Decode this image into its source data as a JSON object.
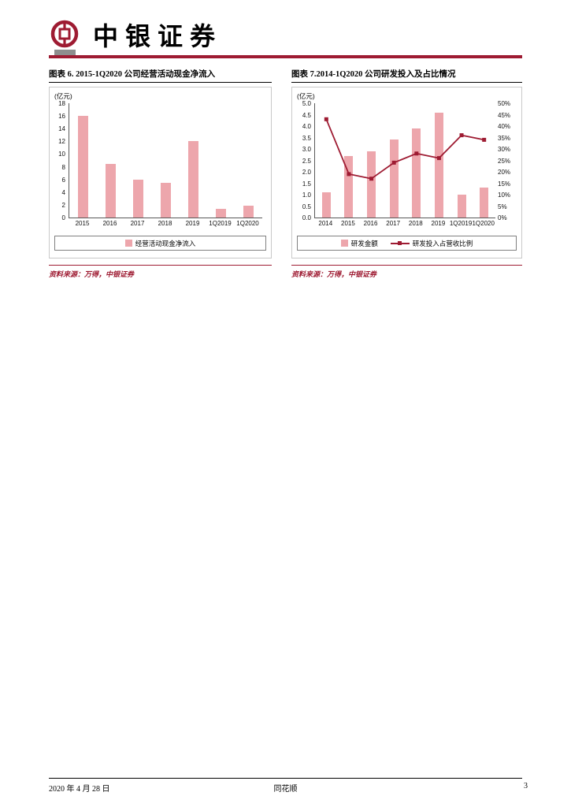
{
  "header": {
    "brand": "中银证券"
  },
  "colors": {
    "brand_red": "#9E1B32",
    "bar_fill": "#EDA6AC",
    "line_red": "#9E1B32"
  },
  "figures": [
    {
      "title": "图表 6. 2015-1Q2020 公司经营活动现金净流入",
      "unit": "(亿元)",
      "legend": [
        {
          "type": "bar",
          "label": "经营活动现金净流入"
        }
      ],
      "source": "资料来源：万得，中银证券"
    },
    {
      "title": "图表 7.2014-1Q2020 公司研发投入及占比情况",
      "unit": "(亿元)",
      "legend": [
        {
          "type": "bar",
          "label": "研发金额"
        },
        {
          "type": "line",
          "label": "研发投入占营收比例"
        }
      ],
      "source": "资料来源：万得，中银证券"
    }
  ],
  "chart_data": [
    {
      "type": "bar",
      "title": "2015-1Q2020 公司经营活动现金净流入",
      "unit": "亿元",
      "categories": [
        "2015",
        "2016",
        "2017",
        "2018",
        "2019",
        "1Q2019",
        "1Q2020"
      ],
      "values": [
        16.0,
        8.5,
        6.0,
        5.5,
        12.0,
        1.4,
        1.9
      ],
      "ylim": [
        0,
        18
      ],
      "ytick_step": 2,
      "ytick_decimals": 0,
      "legend": [
        "经营活动现金净流入"
      ],
      "grid": false,
      "legend_position": "bottom"
    },
    {
      "type": "bar+line",
      "title": "2014-1Q2020 公司研发投入及占比情况",
      "unit": "亿元",
      "categories": [
        "2014",
        "2015",
        "2016",
        "2017",
        "2018",
        "2019",
        "1Q2019",
        "1Q2020"
      ],
      "series": [
        {
          "name": "研发金额",
          "type": "bar",
          "axis": "left",
          "values": [
            1.1,
            2.7,
            2.9,
            3.4,
            3.9,
            4.6,
            1.0,
            1.3
          ]
        },
        {
          "name": "研发投入占营收比例",
          "type": "line",
          "axis": "right",
          "values": [
            43,
            19,
            17,
            24,
            28,
            26,
            36,
            34
          ]
        }
      ],
      "ylim": [
        0,
        5
      ],
      "ytick_step": 0.5,
      "ytick_decimals": 1,
      "y2lim": [
        0,
        50
      ],
      "y2tick_step": 5,
      "y2_format": "percent",
      "grid": false,
      "legend_position": "bottom"
    }
  ],
  "footer": {
    "date": "2020 年 4 月 28 日",
    "center": "同花顺",
    "page": "3"
  }
}
